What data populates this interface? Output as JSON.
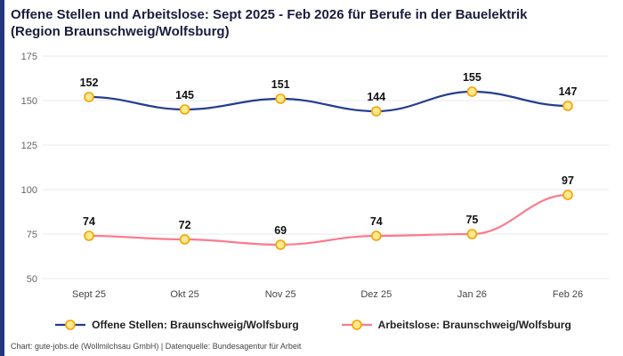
{
  "accent_color": "#23357d",
  "title": "Offene Stellen und Arbeitslose: Sept 2025 - Feb 2026 für Berufe in der Bauelektrik (Region Braunschweig/Wolfsburg)",
  "footer": "Chart: gute-jobs.de (Wollmilchsau GmbH) | Datenquelle: Bundesagentur für Arbeit",
  "chart_data": {
    "type": "line",
    "title": "Offene Stellen und Arbeitslose: Sept 2025 - Feb 2026 für Berufe in der Bauelektrik (Region Braunschweig/Wolfsburg)",
    "categories": [
      "Sept 25",
      "Okt 25",
      "Nov 25",
      "Dez 25",
      "Jan 26",
      "Feb 26"
    ],
    "series": [
      {
        "name": "Offene Stellen: Braunschweig/Wolfsburg",
        "values": [
          152,
          145,
          151,
          144,
          155,
          147
        ],
        "color": "#233d8f"
      },
      {
        "name": "Arbeitslose: Braunschweig/Wolfsburg",
        "values": [
          74,
          72,
          69,
          74,
          75,
          97
        ],
        "color": "#f97b8f"
      }
    ],
    "marker_fill": "#ffe98c",
    "marker_stroke": "#f0a202",
    "grid_color": "#e8e8e8",
    "label_color": "#111111",
    "tick_color": "#666666",
    "xlabel": "",
    "ylabel": "",
    "ylim": [
      50,
      175
    ],
    "yticks": [
      50,
      75,
      100,
      125,
      150,
      175
    ],
    "grid": true,
    "legend_position": "bottom"
  }
}
